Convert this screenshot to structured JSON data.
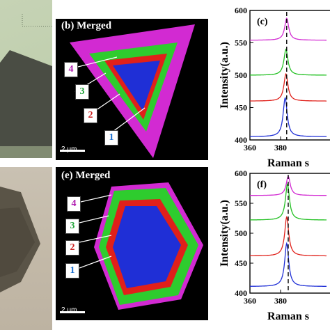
{
  "panels": {
    "b": {
      "label": "(b) Merged",
      "scale": "2 μm",
      "regions": [
        "4",
        "3",
        "2",
        "1"
      ]
    },
    "e": {
      "label": "(e) Merged",
      "scale": "2 μm",
      "regions": [
        "4",
        "3",
        "2",
        "1"
      ]
    },
    "c": {
      "label": "(c)"
    },
    "f": {
      "label": "(f)"
    }
  },
  "colors": {
    "region1": "#1f2fd6",
    "region2": "#e0201a",
    "region3": "#2ecc2e",
    "region4": "#d22ad2",
    "num1": "#1a6fd0",
    "num2": "#cc1f1f",
    "num3": "#22a43a",
    "num4": "#b01eb0"
  },
  "chart_data": [
    {
      "type": "line",
      "panel": "c",
      "xlabel": "Raman s",
      "ylabel": "Intensity(a.u.)",
      "xlim": [
        360,
        410
      ],
      "ylim": [
        400,
        600
      ],
      "xticks": [
        360,
        380
      ],
      "yticks": [
        400,
        450,
        500,
        550,
        600
      ],
      "reference_line_x": 384,
      "series": [
        {
          "color": "#d22ad2",
          "baseline": 554,
          "peak_x": 384,
          "peak_height": 34
        },
        {
          "color": "#22c022",
          "baseline": 500,
          "peak_x": 383.5,
          "peak_height": 40
        },
        {
          "color": "#e0201a",
          "baseline": 460,
          "peak_x": 383.5,
          "peak_height": 42
        },
        {
          "color": "#1f2fd6",
          "baseline": 405,
          "peak_x": 383,
          "peak_height": 60
        }
      ]
    },
    {
      "type": "line",
      "panel": "f",
      "xlabel": "Raman s",
      "ylabel": "Intensity(a.u.)",
      "xlim": [
        360,
        410
      ],
      "ylim": [
        400,
        600
      ],
      "xticks": [
        360,
        380
      ],
      "yticks": [
        400,
        450,
        500,
        550,
        600
      ],
      "reference_line_x": 385,
      "series": [
        {
          "color": "#d22ad2",
          "baseline": 563,
          "peak_x": 385,
          "peak_height": 32
        },
        {
          "color": "#22c022",
          "baseline": 522,
          "peak_x": 384.5,
          "peak_height": 60
        },
        {
          "color": "#e0201a",
          "baseline": 462,
          "peak_x": 384,
          "peak_height": 65
        },
        {
          "color": "#1f2fd6",
          "baseline": 411,
          "peak_x": 384,
          "peak_height": 72
        }
      ]
    }
  ]
}
